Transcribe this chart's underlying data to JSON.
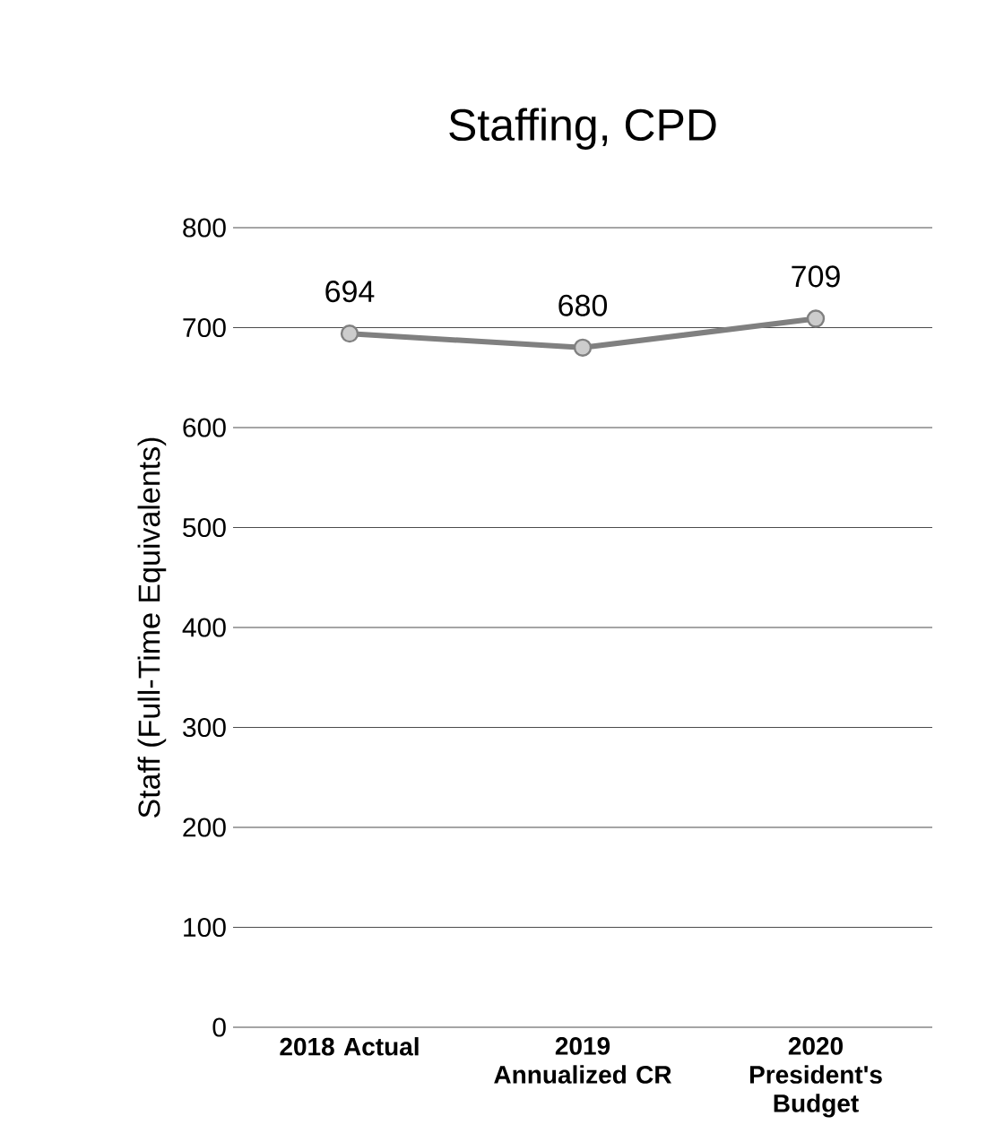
{
  "chart_data": {
    "type": "line",
    "title": "Staffing, CPD",
    "ylabel": "Staff (Full-Time Equivalents)",
    "categories": [
      "2018 Actual",
      "2019 Annualized CR",
      "2020 President's Budget"
    ],
    "series": [
      {
        "color": "#808080",
        "values": [
          694,
          680,
          709
        ]
      }
    ],
    "ylim": [
      0,
      800
    ],
    "yticks": [
      0,
      100,
      200,
      300,
      400,
      500,
      600,
      700,
      800
    ],
    "grid": "y",
    "marker": "circle",
    "data_labels": true
  }
}
